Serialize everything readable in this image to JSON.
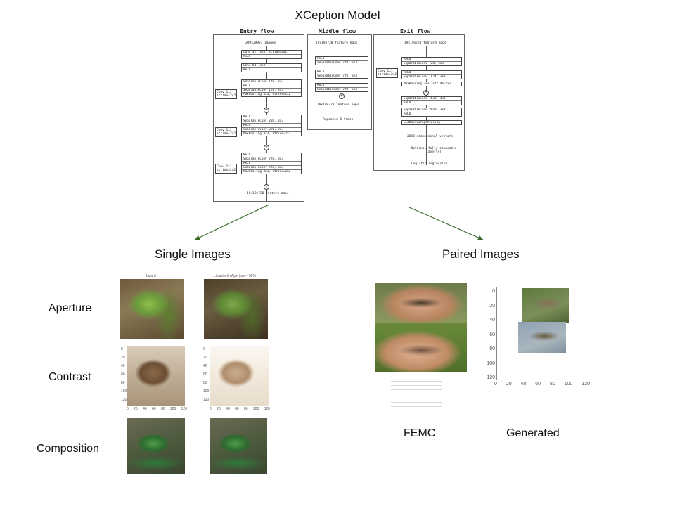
{
  "title": "XCeption Model",
  "sections": {
    "single": "Single Images",
    "paired": "Paired Images"
  },
  "row_labels": [
    "Aperture",
    "Contrast",
    "Composition"
  ],
  "captions": {
    "femc": "FEMC",
    "generated": "Generated"
  },
  "thumb_titles": {
    "lizard": "Lizard",
    "lizard_aperture": "Lizard with Aperture = 50%"
  },
  "arch": {
    "entry_title": "Entry flow",
    "middle_title": "Middle flow",
    "exit_title": "Exit flow",
    "entry_input": "299x299x3 images",
    "entry_b1": [
      "Conv 32, 3x3, stride=2x2",
      "ReLU"
    ],
    "entry_b2": [
      "Conv 64, 3x3",
      "ReLU"
    ],
    "entry_b3": [
      "SeparableConv 128, 3x3",
      "ReLU",
      "SeparableConv 128, 3x3",
      "MaxPooling 3x3, stride=2x2"
    ],
    "entry_b4": [
      "ReLU",
      "SeparableConv 256, 3x3",
      "ReLU",
      "SeparableConv 256, 3x3",
      "MaxPooling 3x3, stride=2x2"
    ],
    "entry_b5": [
      "ReLU",
      "SeparableConv 728, 3x3",
      "ReLU",
      "SeparableConv 728, 3x3",
      "MaxPooling 3x3, stride=2x2"
    ],
    "skip": "Conv 1x1\nstride=2x2",
    "entry_output": "19x19x728 feature maps",
    "middle_input": "19x19x728 feature maps",
    "middle_b": [
      "ReLU",
      "SeparableConv 728, 3x3",
      "ReLU",
      "SeparableConv 728, 3x3",
      "ReLU",
      "SeparableConv 728, 3x3"
    ],
    "middle_output": "19x19x728 feature maps",
    "middle_repeat": "Repeated 8 times",
    "exit_input": "19x19x728 feature maps",
    "exit_b1": [
      "ReLU",
      "SeparableConv 728, 3x3",
      "ReLU",
      "SeparableConv 1024, 3x3",
      "MaxPooling 3x3, stride=2x2"
    ],
    "exit_b2": [
      "SeparableConv 1536, 3x3",
      "ReLU",
      "SeparableConv 2048, 3x3",
      "ReLU",
      "GlobalAveragePooling"
    ],
    "exit_vec": "2048-dimensional vectors",
    "exit_fc": "Optional fully-connected layer(s)",
    "exit_lr": "Logistic regression"
  },
  "axes": {
    "contrast_y": [
      "0",
      "20",
      "40",
      "60",
      "80",
      "100",
      "120"
    ],
    "contrast_x": [
      "0",
      "20",
      "40",
      "60",
      "80",
      "100",
      "120"
    ],
    "generated_y": [
      "0",
      "20",
      "40",
      "60",
      "80",
      "100",
      "120"
    ],
    "generated_x": [
      "0",
      "20",
      "40",
      "60",
      "80",
      "100",
      "120"
    ]
  },
  "colors": {
    "arrow": "#3a6b2a"
  }
}
